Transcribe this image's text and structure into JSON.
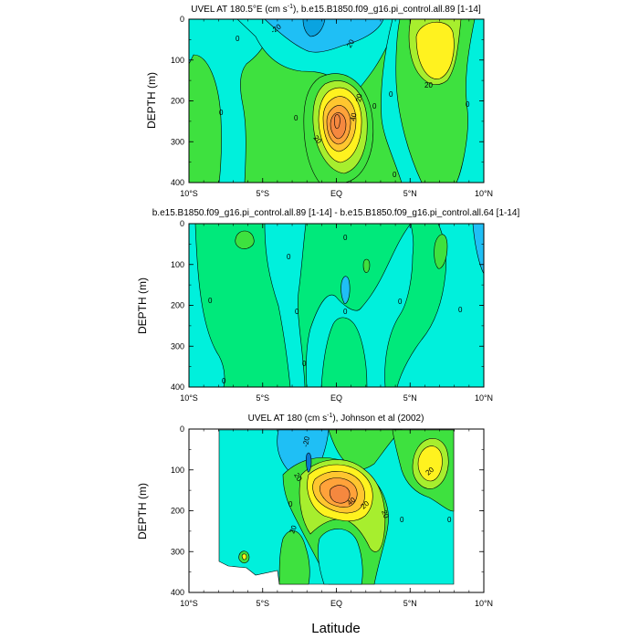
{
  "colors": {
    "level_neg": "#1fbff5",
    "level_zero_lo": "#00f0dc",
    "level_zero_hi": "#00e97b",
    "level_10": "#3ee13f",
    "level_20": "#a7ee2e",
    "level_30": "#fff21f",
    "level_40": "#ffc62f",
    "level_50": "#ffa23a",
    "level_60": "#f5883f",
    "contour_line": "#000000",
    "background": "#ffffff"
  },
  "xlabel": "Latitude",
  "chart_data": [
    {
      "type": "heatmap",
      "title_parts": [
        "UVEL AT 180.5°E (cm s",
        "-1",
        "), b.e15.B1850.f09_g16.pi_control.all.89 [1-14]"
      ],
      "ylabel": "DEPTH (m)",
      "x_ticks": [
        "10°S",
        "5°S",
        "EQ",
        "5°N",
        "10°N"
      ],
      "x_range": [
        -10,
        10
      ],
      "y_ticks": [
        "0",
        "100",
        "200",
        "300",
        "400"
      ],
      "ylim": [
        400,
        0
      ],
      "contour_labels": [
        "-20",
        "20",
        "40",
        "20",
        "20",
        "0",
        "0",
        "0",
        "0",
        "0",
        "0",
        "0"
      ],
      "max": {
        "lat": 0,
        "depth": 190,
        "value": 60
      }
    },
    {
      "type": "heatmap",
      "title": "b.e15.B1850.f09_g16.pi_control.all.89 [1-14] - b.e15.B1850.f09_g16.pi_control.all.64 [1-14]",
      "ylabel": "DEPTH (m)",
      "x_ticks": [
        "10°S",
        "5°S",
        "EQ",
        "5°N",
        "10°N"
      ],
      "x_range": [
        -10,
        10
      ],
      "y_ticks": [
        "0",
        "100",
        "200",
        "300",
        "400"
      ],
      "ylim": [
        400,
        0
      ],
      "contour_labels": [
        "0",
        "0",
        "0",
        "0",
        "0",
        "0",
        "0",
        "0",
        "0"
      ]
    },
    {
      "type": "heatmap",
      "title_parts": [
        "UVEL AT 180 (cm s",
        "-1",
        "), Johnson et al (2002)"
      ],
      "ylabel": "DEPTH (m)",
      "x_ticks": [
        "10°S",
        "5°S",
        "EQ",
        "5°N",
        "10°N"
      ],
      "x_range": [
        -10,
        10
      ],
      "y_ticks": [
        "0",
        "100",
        "200",
        "300",
        "400"
      ],
      "ylim": [
        400,
        0
      ],
      "data_extent_lat": [
        -8,
        8
      ],
      "contour_labels": [
        "-20",
        "20",
        "40",
        "20",
        "20",
        "20",
        "20",
        "0"
      ],
      "max": {
        "lat": 0,
        "depth": 165,
        "value": 60
      }
    }
  ]
}
